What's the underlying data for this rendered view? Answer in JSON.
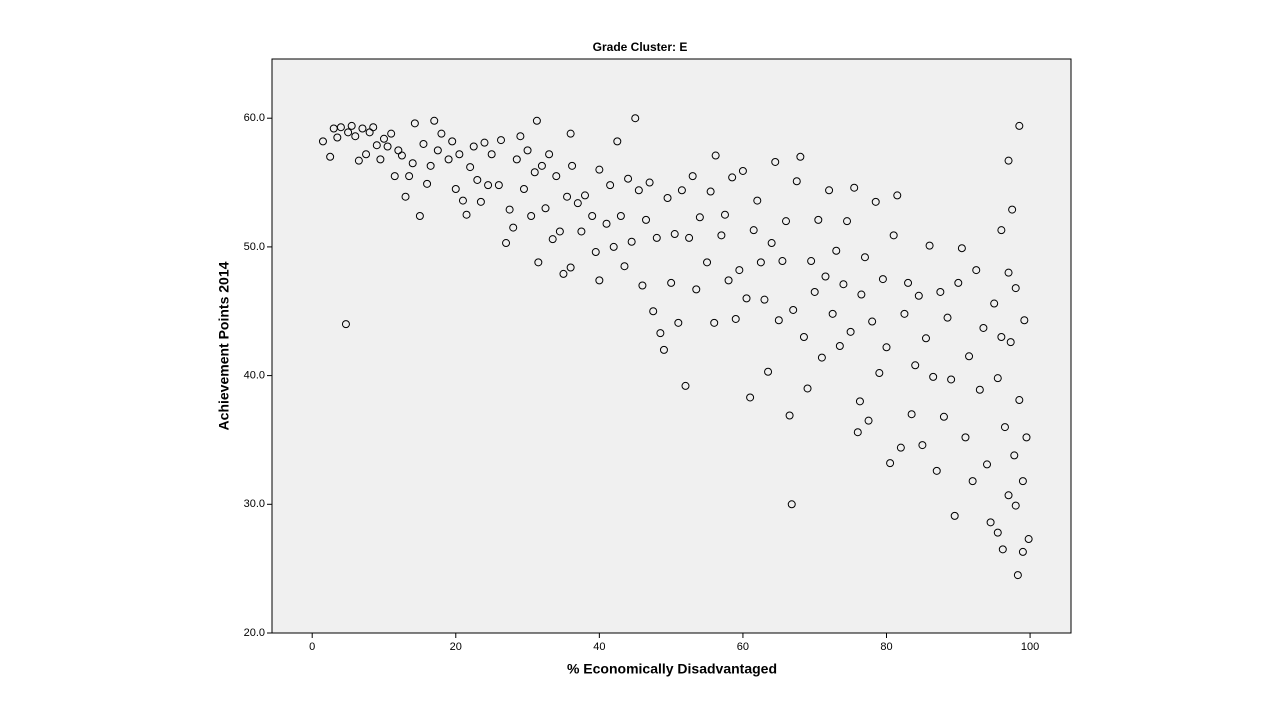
{
  "chart_data": {
    "type": "scatter",
    "title": "Grade Cluster: E",
    "x_label": "% Economically Disadvantaged",
    "y_label": "Achievement Points 2014",
    "color": "#000000",
    "xlim": [
      -5.6,
      105.7
    ],
    "ylim": [
      20,
      64.6
    ],
    "xticks": [
      0,
      20,
      40,
      60,
      80,
      100
    ],
    "yticks": [
      {
        "value": 20,
        "label": "20.0"
      },
      {
        "value": 30,
        "label": "30.0"
      },
      {
        "value": 40,
        "label": "40.0"
      },
      {
        "value": 50,
        "label": "50.0"
      },
      {
        "value": 60,
        "label": "60.0"
      }
    ],
    "x": [
      1.5,
      2.5,
      3,
      3.5,
      4,
      5,
      5.5,
      6,
      6.5,
      7,
      7.5,
      8,
      8.5,
      9,
      9.5,
      10,
      10.5,
      11,
      11.5,
      12,
      12.5,
      13,
      13.5,
      14,
      14.3,
      15,
      15.5,
      16,
      16.5,
      17,
      17.5,
      18,
      19,
      19.5,
      20,
      20.5,
      21,
      21.5,
      22,
      22.5,
      23,
      23.5,
      24,
      24.5,
      25,
      26,
      26.3,
      27,
      27.5,
      28,
      28.5,
      29,
      29.5,
      30,
      30.5,
      31,
      31.3,
      31.5,
      32,
      32.5,
      33,
      33.5,
      34,
      34.5,
      35,
      35.5,
      36,
      36.2,
      36,
      37,
      37.5,
      38,
      39,
      39.5,
      40,
      40,
      41,
      41.5,
      42,
      42.5,
      43,
      43.5,
      44,
      44.5,
      45,
      45.5,
      46,
      46.5,
      47,
      47.5,
      48,
      48.5,
      49,
      49.5,
      50,
      50.5,
      51,
      51.5,
      52,
      52.5,
      53,
      53.5,
      54,
      55,
      55.5,
      56,
      56.2,
      57,
      57.5,
      58,
      58.5,
      59,
      59.5,
      60,
      60.5,
      61,
      61.5,
      62,
      62.5,
      63,
      63.5,
      64,
      64.5,
      65,
      65.5,
      66,
      66.5,
      66.8,
      67,
      67.5,
      68,
      68.5,
      69,
      69.5,
      70,
      70.5,
      71,
      71.5,
      72,
      72.5,
      73,
      73.5,
      74,
      74.5,
      75,
      75.5,
      76,
      76.3,
      76.5,
      77,
      77.5,
      78,
      78.5,
      79,
      79.5,
      80,
      80.5,
      81,
      81.5,
      82,
      82.5,
      83,
      83.5,
      84,
      84.5,
      85,
      85.5,
      86,
      86.5,
      87,
      87.5,
      88,
      88.5,
      89,
      89.5,
      90,
      90.5,
      91,
      91.5,
      92,
      92.5,
      93,
      93.5,
      94,
      94.5,
      95,
      95.5,
      95.5,
      96,
      96.2,
      96.5,
      97,
      97,
      97.3,
      97.5,
      97.8,
      98,
      98.3,
      98.5,
      98.5,
      99,
      99,
      99.2,
      99.5,
      99.8,
      4.7,
      98,
      97,
      96
    ],
    "y": [
      58.2,
      57,
      59.2,
      58.5,
      59.3,
      58.9,
      59.4,
      58.6,
      56.7,
      59.2,
      57.2,
      58.9,
      59.3,
      57.9,
      56.8,
      58.4,
      57.8,
      58.8,
      55.5,
      57.5,
      57.1,
      53.9,
      55.5,
      56.5,
      59.6,
      52.4,
      58,
      54.9,
      56.3,
      59.8,
      57.5,
      58.8,
      56.8,
      58.2,
      54.5,
      57.2,
      53.6,
      52.5,
      56.2,
      57.8,
      55.2,
      53.5,
      58.1,
      54.8,
      57.2,
      54.8,
      58.3,
      50.3,
      52.9,
      51.5,
      56.8,
      58.6,
      54.5,
      57.5,
      52.4,
      55.8,
      59.8,
      48.8,
      56.3,
      53,
      57.2,
      50.6,
      55.5,
      51.2,
      47.9,
      53.9,
      58.8,
      56.3,
      48.4,
      53.4,
      51.2,
      54,
      52.4,
      49.6,
      56,
      47.4,
      51.8,
      54.8,
      50,
      58.2,
      52.4,
      48.5,
      55.3,
      50.4,
      60,
      54.4,
      47,
      52.1,
      55,
      45,
      50.7,
      43.3,
      42,
      53.8,
      47.2,
      51,
      44.1,
      54.4,
      39.2,
      50.7,
      55.5,
      46.7,
      52.3,
      48.8,
      54.3,
      44.1,
      57.1,
      50.9,
      52.5,
      47.4,
      55.4,
      44.4,
      48.2,
      55.9,
      46,
      38.3,
      51.3,
      53.6,
      48.8,
      45.9,
      40.3,
      50.3,
      56.6,
      44.3,
      48.9,
      52,
      36.9,
      30,
      45.1,
      55.1,
      57,
      43,
      39,
      48.9,
      46.5,
      52.1,
      41.4,
      47.7,
      54.4,
      44.8,
      49.7,
      42.3,
      47.1,
      52,
      43.4,
      54.6,
      35.6,
      38,
      46.3,
      49.2,
      36.5,
      44.2,
      53.5,
      40.2,
      47.5,
      42.2,
      33.2,
      50.9,
      54,
      34.4,
      44.8,
      47.2,
      37,
      40.8,
      46.2,
      34.6,
      42.9,
      50.1,
      39.9,
      32.6,
      46.5,
      36.8,
      44.5,
      39.7,
      29.1,
      47.2,
      49.9,
      35.2,
      41.5,
      31.8,
      48.2,
      38.9,
      43.7,
      33.1,
      28.6,
      45.6,
      39.8,
      27.8,
      51.3,
      26.5,
      36,
      56.7,
      30.7,
      42.6,
      52.9,
      33.8,
      46.8,
      24.5,
      59.4,
      38.1,
      26.3,
      31.8,
      44.3,
      35.2,
      27.3,
      44,
      29.9,
      48,
      43
    ]
  }
}
